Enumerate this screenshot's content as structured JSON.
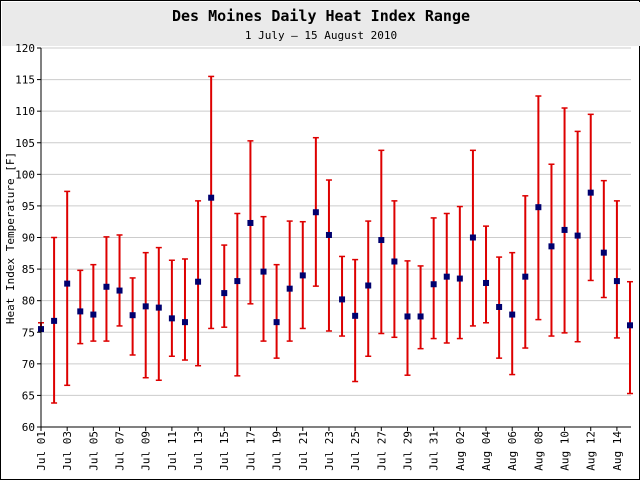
{
  "chart_data": {
    "type": "scatter",
    "title": "Des Moines Daily Heat Index Range",
    "subtitle": "1 July – 15 August 2010",
    "ylabel": "Heat Index Temperature [F]",
    "xlabel": "",
    "ylim": [
      60,
      120
    ],
    "yticks": [
      60,
      65,
      70,
      75,
      80,
      85,
      90,
      95,
      100,
      105,
      110,
      115,
      120
    ],
    "grid": true,
    "legend": "none",
    "colors": {
      "range": "#dd0000",
      "point": "#00006e",
      "grid": "#cccccc",
      "header": "#eaeaea"
    },
    "days": [
      "Jul 01",
      "Jul 02",
      "Jul 03",
      "Jul 04",
      "Jul 05",
      "Jul 06",
      "Jul 07",
      "Jul 08",
      "Jul 09",
      "Jul 10",
      "Jul 11",
      "Jul 12",
      "Jul 13",
      "Jul 14",
      "Jul 15",
      "Jul 16",
      "Jul 17",
      "Jul 18",
      "Jul 19",
      "Jul 20",
      "Jul 21",
      "Jul 22",
      "Jul 23",
      "Jul 24",
      "Jul 25",
      "Jul 26",
      "Jul 27",
      "Jul 28",
      "Jul 29",
      "Jul 30",
      "Jul 31",
      "Aug 01",
      "Aug 02",
      "Aug 03",
      "Aug 04",
      "Aug 05",
      "Aug 06",
      "Aug 07",
      "Aug 08",
      "Aug 09",
      "Aug 10",
      "Aug 11",
      "Aug 12",
      "Aug 13",
      "Aug 14",
      "Aug 15"
    ],
    "tick_labels": [
      "Jul 01",
      "Jul 03",
      "Jul 05",
      "Jul 07",
      "Jul 09",
      "Jul 11",
      "Jul 13",
      "Jul 15",
      "Jul 17",
      "Jul 19",
      "Jul 21",
      "Jul 23",
      "Jul 25",
      "Jul 27",
      "Jul 29",
      "Jul 31",
      "Aug 02",
      "Aug 04",
      "Aug 06",
      "Aug 08",
      "Aug 10",
      "Aug 12",
      "Aug 14"
    ],
    "series": [
      {
        "name": "low",
        "values": [
          75.5,
          63.8,
          66.6,
          73.2,
          73.6,
          73.6,
          76.0,
          71.4,
          67.8,
          67.4,
          71.2,
          70.6,
          69.7,
          75.6,
          75.8,
          68.1,
          79.5,
          73.6,
          70.9,
          73.6,
          75.6,
          82.3,
          75.2,
          74.4,
          67.2,
          71.2,
          74.8,
          74.2,
          68.2,
          72.4,
          74.0,
          73.3,
          74.0,
          76.0,
          76.5,
          70.9,
          68.3,
          72.5,
          77.0,
          74.4,
          74.9,
          73.5,
          83.2,
          80.5,
          74.1,
          65.3
        ]
      },
      {
        "name": "high",
        "values": [
          76.5,
          90.0,
          97.3,
          84.8,
          85.7,
          90.1,
          90.4,
          83.6,
          87.6,
          88.4,
          86.4,
          86.6,
          95.8,
          115.5,
          88.8,
          93.8,
          105.3,
          93.3,
          85.7,
          92.6,
          92.5,
          105.8,
          99.1,
          87.0,
          86.5,
          92.6,
          103.8,
          95.8,
          86.3,
          85.5,
          93.1,
          93.8,
          94.9,
          103.8,
          91.8,
          86.9,
          87.6,
          96.6,
          112.4,
          101.6,
          110.5,
          106.8,
          109.5,
          99.0,
          95.8,
          83.0
        ]
      },
      {
        "name": "mean",
        "values": [
          75.5,
          76.8,
          82.7,
          78.3,
          77.8,
          82.2,
          81.6,
          77.7,
          79.1,
          78.9,
          77.2,
          76.6,
          83.0,
          96.3,
          81.2,
          83.1,
          92.3,
          84.6,
          76.6,
          81.9,
          84.0,
          94.0,
          90.4,
          80.2,
          77.6,
          82.4,
          89.6,
          86.2,
          77.5,
          77.5,
          82.6,
          83.8,
          83.5,
          90.0,
          82.8,
          79.0,
          77.8,
          83.8,
          94.8,
          88.6,
          91.2,
          90.3,
          97.1,
          87.6,
          83.1,
          76.1
        ]
      }
    ]
  }
}
